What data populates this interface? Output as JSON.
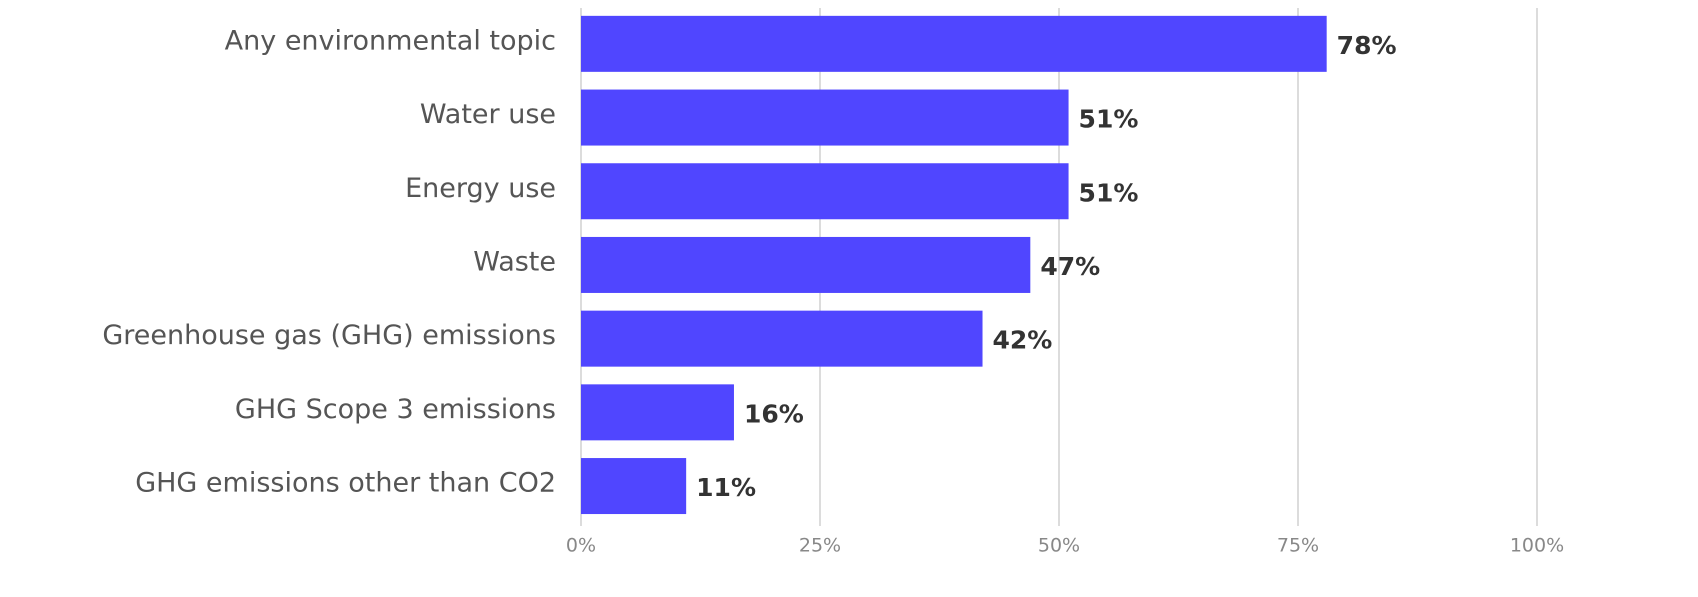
{
  "chart_data": {
    "type": "barh",
    "categories": [
      "Any environmental topic",
      "Water use",
      "Energy use",
      "Waste",
      "Greenhouse gas (GHG) emissions",
      "GHG Scope 3 emissions",
      "GHG emissions other than CO2"
    ],
    "values": [
      78,
      51,
      51,
      47,
      42,
      16,
      11
    ],
    "value_labels": [
      "78%",
      "51%",
      "51%",
      "47%",
      "42%",
      "16%",
      "11%"
    ],
    "color": "#5046ff",
    "xlim": [
      0,
      100
    ],
    "xticks": [
      {
        "value": 0,
        "label": "0%"
      },
      {
        "value": 25,
        "label": "25%"
      },
      {
        "value": 50,
        "label": "50%"
      },
      {
        "value": 75,
        "label": "75%"
      },
      {
        "value": 100,
        "label": "100%"
      }
    ],
    "grid": true
  }
}
